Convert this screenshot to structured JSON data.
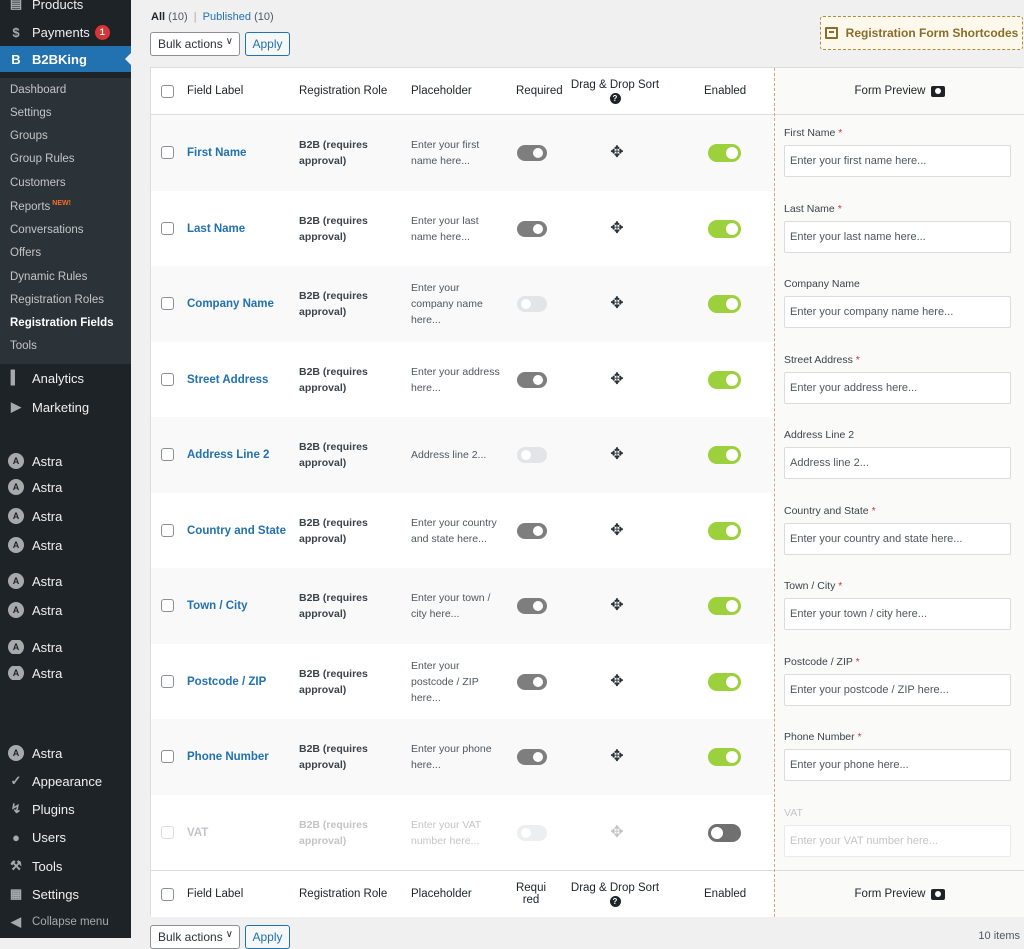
{
  "sidebar": {
    "top": [
      {
        "label": "Products",
        "icon": "products-icon"
      },
      {
        "label": "Payments",
        "icon": "payments-icon",
        "badge": "1"
      },
      {
        "label": "B2BKing",
        "icon": "b2bking-icon"
      }
    ],
    "submenu": [
      {
        "label": "Dashboard"
      },
      {
        "label": "Settings"
      },
      {
        "label": "Groups"
      },
      {
        "label": "Group Rules"
      },
      {
        "label": "Customers"
      },
      {
        "label": "Reports",
        "tag": "NEW!"
      },
      {
        "label": "Conversations"
      },
      {
        "label": "Offers"
      },
      {
        "label": "Dynamic Rules"
      },
      {
        "label": "Registration Roles"
      },
      {
        "label": "Registration Fields"
      },
      {
        "label": "Tools"
      }
    ],
    "bottom": [
      {
        "label": "Analytics"
      },
      {
        "label": "Marketing"
      },
      {
        "label": "Astra"
      },
      {
        "label": "Astra"
      },
      {
        "label": "Astra"
      },
      {
        "label": "Astra"
      },
      {
        "label": "Astra"
      },
      {
        "label": "Astra"
      },
      {
        "label": "Astra"
      },
      {
        "label": "Astra"
      },
      {
        "label": "Astra"
      },
      {
        "label": "Appearance"
      },
      {
        "label": "Plugins"
      },
      {
        "label": "Users"
      },
      {
        "label": "Tools"
      },
      {
        "label": "Settings"
      },
      {
        "label": "Collapse menu"
      }
    ]
  },
  "filters": {
    "all": "All",
    "all_count": "(10)",
    "sep": "|",
    "published": "Published",
    "published_count": "(10)"
  },
  "bulk": {
    "label": "Bulk actions",
    "apply": "Apply"
  },
  "shortcode_button": "Registration Form Shortcodes",
  "columns": {
    "field_label": "Field Label",
    "role": "Registration Role",
    "placeholder": "Placeholder",
    "required": "Required",
    "required_footer_1": "Requi",
    "required_footer_2": "red",
    "sort": "Drag & Drop Sort",
    "enabled": "Enabled",
    "preview": "Form Preview"
  },
  "rows": [
    {
      "label": "First Name",
      "role_1": "B2B (requires",
      "role_2": "approval)",
      "ph_1": "Enter your first",
      "ph_2": "name here...",
      "ph_3": "",
      "required": true,
      "enabled": true
    },
    {
      "label": "Last Name",
      "role_1": "B2B (requires",
      "role_2": "approval)",
      "ph_1": "Enter your last",
      "ph_2": "name here...",
      "ph_3": "",
      "required": true,
      "enabled": true
    },
    {
      "label": "Company Name",
      "role_1": "B2B (requires",
      "role_2": "approval)",
      "ph_1": "Enter your",
      "ph_2": "company name",
      "ph_3": "here...",
      "required": false,
      "enabled": true
    },
    {
      "label": "Street Address",
      "role_1": "B2B (requires",
      "role_2": "approval)",
      "ph_1": "Enter your address",
      "ph_2": "here...",
      "ph_3": "",
      "required": true,
      "enabled": true
    },
    {
      "label": "Address Line 2",
      "role_1": "B2B (requires",
      "role_2": "approval)",
      "ph_1": "Address line 2...",
      "ph_2": "",
      "ph_3": "",
      "required": false,
      "enabled": true
    },
    {
      "label": "Country and State",
      "role_1": "B2B (requires",
      "role_2": "approval)",
      "ph_1": "Enter your country",
      "ph_2": "and state here...",
      "ph_3": "",
      "required": true,
      "enabled": true
    },
    {
      "label": "Town / City",
      "role_1": "B2B (requires",
      "role_2": "approval)",
      "ph_1": "Enter your town /",
      "ph_2": "city here...",
      "ph_3": "",
      "required": true,
      "enabled": true
    },
    {
      "label": "Postcode / ZIP",
      "role_1": "B2B (requires",
      "role_2": "approval)",
      "ph_1": "Enter your",
      "ph_2": "postcode / ZIP",
      "ph_3": "here...",
      "required": true,
      "enabled": true
    },
    {
      "label": "Phone Number",
      "role_1": "B2B (requires",
      "role_2": "approval)",
      "ph_1": "Enter your phone",
      "ph_2": "here...",
      "ph_3": "",
      "required": true,
      "enabled": true
    },
    {
      "label": "VAT",
      "role_1": "B2B (requires",
      "role_2": "approval)",
      "ph_1": "Enter your VAT",
      "ph_2": "number here...",
      "ph_3": "",
      "required": false,
      "enabled": false
    }
  ],
  "preview_fields": [
    {
      "label": "First Name",
      "req": "*",
      "placeholder": "Enter your first name here..."
    },
    {
      "label": "Last Name",
      "req": "*",
      "placeholder": "Enter your last name here..."
    },
    {
      "label": "Company Name",
      "req": "",
      "placeholder": "Enter your company name here..."
    },
    {
      "label": "Street Address",
      "req": "*",
      "placeholder": "Enter your address here..."
    },
    {
      "label": "Address Line 2",
      "req": "",
      "placeholder": "Address line 2..."
    },
    {
      "label": "Country and State",
      "req": "*",
      "placeholder": "Enter your country and state here..."
    },
    {
      "label": "Town / City",
      "req": "*",
      "placeholder": "Enter your town / city here..."
    },
    {
      "label": "Postcode / ZIP",
      "req": "*",
      "placeholder": "Enter your postcode / ZIP here..."
    },
    {
      "label": "Phone Number",
      "req": "*",
      "placeholder": "Enter your phone here..."
    },
    {
      "label": "VAT",
      "req": "",
      "placeholder": "Enter your VAT number here..."
    }
  ],
  "items_count": "10 items",
  "colors": {
    "accent": "#2271b1",
    "toggle_on": "#9cd03d",
    "sidebar": "#1d2327"
  }
}
